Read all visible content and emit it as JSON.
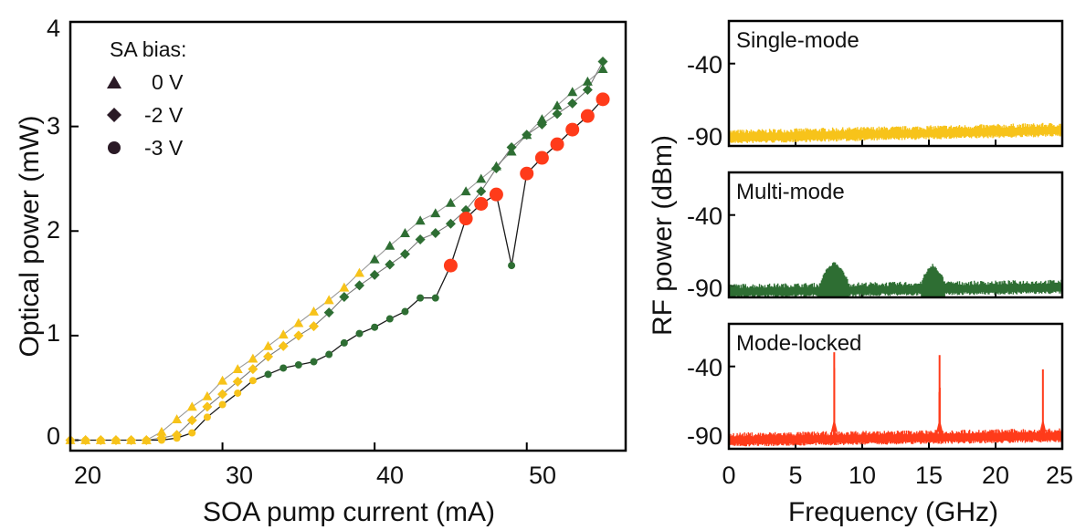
{
  "colors": {
    "yellow": "#F7C31A",
    "green": "#2E6E33",
    "red": "#FF3B1A",
    "triangle_line": "#9a9a9a",
    "diamond_line": "#7a7a7a",
    "circle_line": "#1a1a1a",
    "marker_legend": "#2a1a26",
    "axis": "#000000"
  },
  "chart_data": [
    {
      "type": "scatter",
      "xlabel": "SOA pump current (mA)",
      "ylabel": "Optical power (mW)",
      "xlim": [
        20,
        56.5
      ],
      "ylim": [
        -0.1,
        4
      ],
      "xticks": [
        "20",
        "30",
        "40",
        "50"
      ],
      "yticks": [
        "0",
        "1",
        "2",
        "3",
        "4"
      ],
      "grid": false,
      "legend": {
        "title": "SA bias:",
        "position": "top-left",
        "entries": [
          {
            "marker": "triangle",
            "label": "0 V"
          },
          {
            "marker": "diamond",
            "label": "-2 V"
          },
          {
            "marker": "circle",
            "label": "-3 V"
          }
        ]
      },
      "series": [
        {
          "name": "0 V",
          "marker": "triangle",
          "points": [
            {
              "x": 20,
              "y": 0.0,
              "c": "yellow"
            },
            {
              "x": 21,
              "y": 0.0,
              "c": "yellow"
            },
            {
              "x": 22,
              "y": 0.0,
              "c": "yellow"
            },
            {
              "x": 23,
              "y": 0.0,
              "c": "yellow"
            },
            {
              "x": 24,
              "y": 0.0,
              "c": "yellow"
            },
            {
              "x": 25,
              "y": 0.0,
              "c": "yellow"
            },
            {
              "x": 26,
              "y": 0.08,
              "c": "yellow"
            },
            {
              "x": 27,
              "y": 0.2,
              "c": "yellow"
            },
            {
              "x": 28,
              "y": 0.32,
              "c": "yellow"
            },
            {
              "x": 29,
              "y": 0.42,
              "c": "yellow"
            },
            {
              "x": 30,
              "y": 0.57,
              "c": "yellow"
            },
            {
              "x": 31,
              "y": 0.68,
              "c": "yellow"
            },
            {
              "x": 32,
              "y": 0.78,
              "c": "yellow"
            },
            {
              "x": 33,
              "y": 0.9,
              "c": "yellow"
            },
            {
              "x": 34,
              "y": 1.01,
              "c": "yellow"
            },
            {
              "x": 35,
              "y": 1.12,
              "c": "yellow"
            },
            {
              "x": 36,
              "y": 1.23,
              "c": "yellow"
            },
            {
              "x": 37,
              "y": 1.34,
              "c": "yellow"
            },
            {
              "x": 38,
              "y": 1.46,
              "c": "yellow"
            },
            {
              "x": 39,
              "y": 1.6,
              "c": "yellow"
            },
            {
              "x": 40,
              "y": 1.73,
              "c": "green"
            },
            {
              "x": 41,
              "y": 1.86,
              "c": "green"
            },
            {
              "x": 42,
              "y": 1.98,
              "c": "green"
            },
            {
              "x": 43,
              "y": 2.1,
              "c": "green"
            },
            {
              "x": 44,
              "y": 2.17,
              "c": "green"
            },
            {
              "x": 45,
              "y": 2.27,
              "c": "green"
            },
            {
              "x": 46,
              "y": 2.38,
              "c": "green"
            },
            {
              "x": 47,
              "y": 2.5,
              "c": "green"
            },
            {
              "x": 48,
              "y": 2.62,
              "c": "green"
            },
            {
              "x": 49,
              "y": 2.76,
              "c": "green"
            },
            {
              "x": 50,
              "y": 2.92,
              "c": "green"
            },
            {
              "x": 51,
              "y": 3.07,
              "c": "green"
            },
            {
              "x": 52,
              "y": 3.2,
              "c": "green"
            },
            {
              "x": 53,
              "y": 3.33,
              "c": "green"
            },
            {
              "x": 54,
              "y": 3.43,
              "c": "green"
            },
            {
              "x": 55,
              "y": 3.55,
              "c": "green"
            }
          ]
        },
        {
          "name": "-2 V",
          "marker": "diamond",
          "points": [
            {
              "x": 20,
              "y": 0.0,
              "c": "yellow"
            },
            {
              "x": 21,
              "y": 0.0,
              "c": "yellow"
            },
            {
              "x": 22,
              "y": 0.0,
              "c": "yellow"
            },
            {
              "x": 23,
              "y": 0.0,
              "c": "yellow"
            },
            {
              "x": 24,
              "y": 0.0,
              "c": "yellow"
            },
            {
              "x": 25,
              "y": 0.0,
              "c": "yellow"
            },
            {
              "x": 26,
              "y": 0.02,
              "c": "yellow"
            },
            {
              "x": 27,
              "y": 0.05,
              "c": "yellow"
            },
            {
              "x": 28,
              "y": 0.19,
              "c": "yellow"
            },
            {
              "x": 29,
              "y": 0.32,
              "c": "yellow"
            },
            {
              "x": 30,
              "y": 0.44,
              "c": "yellow"
            },
            {
              "x": 31,
              "y": 0.56,
              "c": "yellow"
            },
            {
              "x": 32,
              "y": 0.68,
              "c": "yellow"
            },
            {
              "x": 33,
              "y": 0.8,
              "c": "yellow"
            },
            {
              "x": 34,
              "y": 0.9,
              "c": "yellow"
            },
            {
              "x": 35,
              "y": 1.0,
              "c": "yellow"
            },
            {
              "x": 36,
              "y": 1.09,
              "c": "yellow"
            },
            {
              "x": 37,
              "y": 1.22,
              "c": "green"
            },
            {
              "x": 38,
              "y": 1.37,
              "c": "green"
            },
            {
              "x": 39,
              "y": 1.48,
              "c": "green"
            },
            {
              "x": 40,
              "y": 1.58,
              "c": "green"
            },
            {
              "x": 41,
              "y": 1.68,
              "c": "green"
            },
            {
              "x": 42,
              "y": 1.78,
              "c": "green"
            },
            {
              "x": 43,
              "y": 1.92,
              "c": "green"
            },
            {
              "x": 44,
              "y": 1.98,
              "c": "green"
            },
            {
              "x": 45,
              "y": 2.07,
              "c": "green"
            },
            {
              "x": 46,
              "y": 2.2,
              "c": "green"
            },
            {
              "x": 47,
              "y": 2.38,
              "c": "green"
            },
            {
              "x": 48,
              "y": 2.6,
              "c": "green"
            },
            {
              "x": 49,
              "y": 2.8,
              "c": "green"
            },
            {
              "x": 50,
              "y": 2.92,
              "c": "green"
            },
            {
              "x": 51,
              "y": 3.02,
              "c": "green"
            },
            {
              "x": 52,
              "y": 3.12,
              "c": "green"
            },
            {
              "x": 53,
              "y": 3.22,
              "c": "green"
            },
            {
              "x": 54,
              "y": 3.35,
              "c": "green"
            },
            {
              "x": 55,
              "y": 3.62,
              "c": "green"
            }
          ]
        },
        {
          "name": "-3 V",
          "marker": "circle",
          "points": [
            {
              "x": 20,
              "y": 0.0,
              "c": "yellow",
              "big": false
            },
            {
              "x": 21,
              "y": 0.0,
              "c": "yellow",
              "big": false
            },
            {
              "x": 22,
              "y": 0.0,
              "c": "yellow",
              "big": false
            },
            {
              "x": 23,
              "y": 0.0,
              "c": "yellow",
              "big": false
            },
            {
              "x": 24,
              "y": 0.0,
              "c": "yellow",
              "big": false
            },
            {
              "x": 25,
              "y": 0.0,
              "c": "yellow",
              "big": false
            },
            {
              "x": 26,
              "y": 0.0,
              "c": "yellow",
              "big": false
            },
            {
              "x": 27,
              "y": 0.02,
              "c": "yellow",
              "big": false
            },
            {
              "x": 28,
              "y": 0.07,
              "c": "yellow",
              "big": false
            },
            {
              "x": 29,
              "y": 0.22,
              "c": "yellow",
              "big": false
            },
            {
              "x": 30,
              "y": 0.34,
              "c": "yellow",
              "big": false
            },
            {
              "x": 31,
              "y": 0.45,
              "c": "yellow",
              "big": false
            },
            {
              "x": 32,
              "y": 0.57,
              "c": "yellow",
              "big": false
            },
            {
              "x": 33,
              "y": 0.63,
              "c": "green",
              "big": false
            },
            {
              "x": 34,
              "y": 0.69,
              "c": "green",
              "big": false
            },
            {
              "x": 35,
              "y": 0.72,
              "c": "green",
              "big": false
            },
            {
              "x": 36,
              "y": 0.75,
              "c": "green",
              "big": false
            },
            {
              "x": 37,
              "y": 0.82,
              "c": "green",
              "big": false
            },
            {
              "x": 38,
              "y": 0.93,
              "c": "green",
              "big": false
            },
            {
              "x": 39,
              "y": 1.02,
              "c": "green",
              "big": false
            },
            {
              "x": 40,
              "y": 1.08,
              "c": "green",
              "big": false
            },
            {
              "x": 41,
              "y": 1.16,
              "c": "green",
              "big": false
            },
            {
              "x": 42,
              "y": 1.23,
              "c": "green",
              "big": false
            },
            {
              "x": 43,
              "y": 1.36,
              "c": "green",
              "big": false
            },
            {
              "x": 44,
              "y": 1.36,
              "c": "green",
              "big": false
            },
            {
              "x": 45,
              "y": 1.67,
              "c": "red",
              "big": true
            },
            {
              "x": 46,
              "y": 2.12,
              "c": "red",
              "big": true
            },
            {
              "x": 47,
              "y": 2.26,
              "c": "red",
              "big": true
            },
            {
              "x": 48,
              "y": 2.35,
              "c": "red",
              "big": true
            },
            {
              "x": 49,
              "y": 1.67,
              "c": "green",
              "big": false
            },
            {
              "x": 50,
              "y": 2.55,
              "c": "red",
              "big": true
            },
            {
              "x": 51,
              "y": 2.7,
              "c": "red",
              "big": true
            },
            {
              "x": 52,
              "y": 2.83,
              "c": "red",
              "big": true
            },
            {
              "x": 53,
              "y": 2.97,
              "c": "red",
              "big": true
            },
            {
              "x": 54,
              "y": 3.1,
              "c": "red",
              "big": true
            },
            {
              "x": 55,
              "y": 3.26,
              "c": "red",
              "big": true
            }
          ]
        }
      ]
    },
    {
      "type": "line",
      "panels": [
        {
          "title": "Single-mode",
          "color": "yellow",
          "noise_floor_dbm": -92,
          "peaks": []
        },
        {
          "title": "Multi-mode",
          "color": "green",
          "noise_floor_dbm": -94,
          "peaks": [
            {
              "freq_ghz": [
                6.8,
                9.0
              ],
              "level_dbm": -74
            },
            {
              "freq_ghz": [
                14.4,
                16.2
              ],
              "level_dbm": -76
            }
          ]
        },
        {
          "title": "Mode-locked",
          "color": "red",
          "noise_floor_dbm": -92,
          "peaks": [
            {
              "freq_ghz": [
                7.85,
                7.95
              ],
              "level_dbm": -30
            },
            {
              "freq_ghz": [
                15.75,
                15.85
              ],
              "level_dbm": -32
            },
            {
              "freq_ghz": [
                23.5,
                23.6
              ],
              "level_dbm": -42
            }
          ]
        }
      ],
      "ylabel": "RF power (dBm)",
      "xlabel": "Frequency (GHz)",
      "xlim": [
        0,
        25
      ],
      "ylim": [
        -98,
        -10
      ],
      "yticks": [
        "-40",
        "-90"
      ],
      "xticks": [
        "0",
        "5",
        "10",
        "15",
        "20",
        "25"
      ],
      "grid": false
    }
  ]
}
